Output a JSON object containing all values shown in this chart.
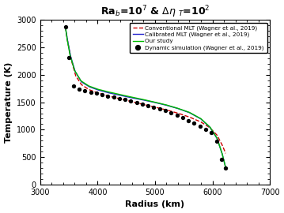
{
  "xlabel": "Radius (km)",
  "ylabel": "Temperature (K)",
  "xlim": [
    3000,
    7000
  ],
  "ylim": [
    0,
    3000
  ],
  "xticks": [
    3000,
    4000,
    5000,
    6000,
    7000
  ],
  "yticks": [
    0,
    500,
    1000,
    1500,
    2000,
    2500,
    3000
  ],
  "dots_r": [
    3440,
    3500,
    3580,
    3680,
    3780,
    3880,
    3980,
    4080,
    4180,
    4280,
    4380,
    4480,
    4580,
    4680,
    4780,
    4880,
    4980,
    5080,
    5180,
    5280,
    5380,
    5480,
    5580,
    5680,
    5780,
    5880,
    5980,
    6080,
    6160,
    6230
  ],
  "dots_T": [
    2870,
    2310,
    1800,
    1740,
    1710,
    1680,
    1660,
    1640,
    1615,
    1595,
    1570,
    1545,
    1520,
    1495,
    1465,
    1440,
    1410,
    1375,
    1345,
    1305,
    1260,
    1215,
    1170,
    1120,
    1065,
    1005,
    945,
    790,
    460,
    300
  ],
  "conv_mlt_r": [
    3440,
    3480,
    3540,
    3620,
    3720,
    3850,
    4000,
    4200,
    4400,
    4600,
    4800,
    5000,
    5200,
    5400,
    5600,
    5800,
    5950,
    6080,
    6170,
    6230
  ],
  "conv_mlt_T": [
    2870,
    2600,
    2280,
    1980,
    1820,
    1730,
    1670,
    1610,
    1560,
    1510,
    1460,
    1410,
    1360,
    1300,
    1230,
    1140,
    1040,
    900,
    720,
    570
  ],
  "calib_mlt_r": [
    3440,
    3475,
    3530,
    3610,
    3720,
    3860,
    4020,
    4200,
    4400,
    4600,
    4800,
    5000,
    5200,
    5400,
    5600,
    5800,
    5960,
    6080,
    6170,
    6230
  ],
  "calib_mlt_T": [
    2870,
    2640,
    2340,
    2060,
    1870,
    1780,
    1720,
    1670,
    1625,
    1580,
    1540,
    1495,
    1445,
    1385,
    1310,
    1195,
    1040,
    840,
    560,
    310
  ],
  "our_r": [
    3440,
    3470,
    3520,
    3600,
    3710,
    3850,
    4010,
    4200,
    4400,
    4600,
    4800,
    5000,
    5200,
    5400,
    5600,
    5800,
    5960,
    6080,
    6170,
    6230
  ],
  "our_T": [
    2870,
    2650,
    2360,
    2080,
    1890,
    1795,
    1735,
    1685,
    1638,
    1592,
    1548,
    1500,
    1450,
    1388,
    1315,
    1200,
    1045,
    845,
    560,
    310
  ],
  "dot_color": "#000000",
  "conv_mlt_color": "#cc0000",
  "calib_mlt_color": "#2222cc",
  "our_color": "#00bb00",
  "legend_labels": [
    "Dynamic simulation (Wagner et al., 2019)",
    "Conventional MLT (Wagner et al., 2019)",
    "Calibrated MLT (Wagner et al., 2019)",
    "Our study"
  ],
  "bg_color": "#ffffff"
}
